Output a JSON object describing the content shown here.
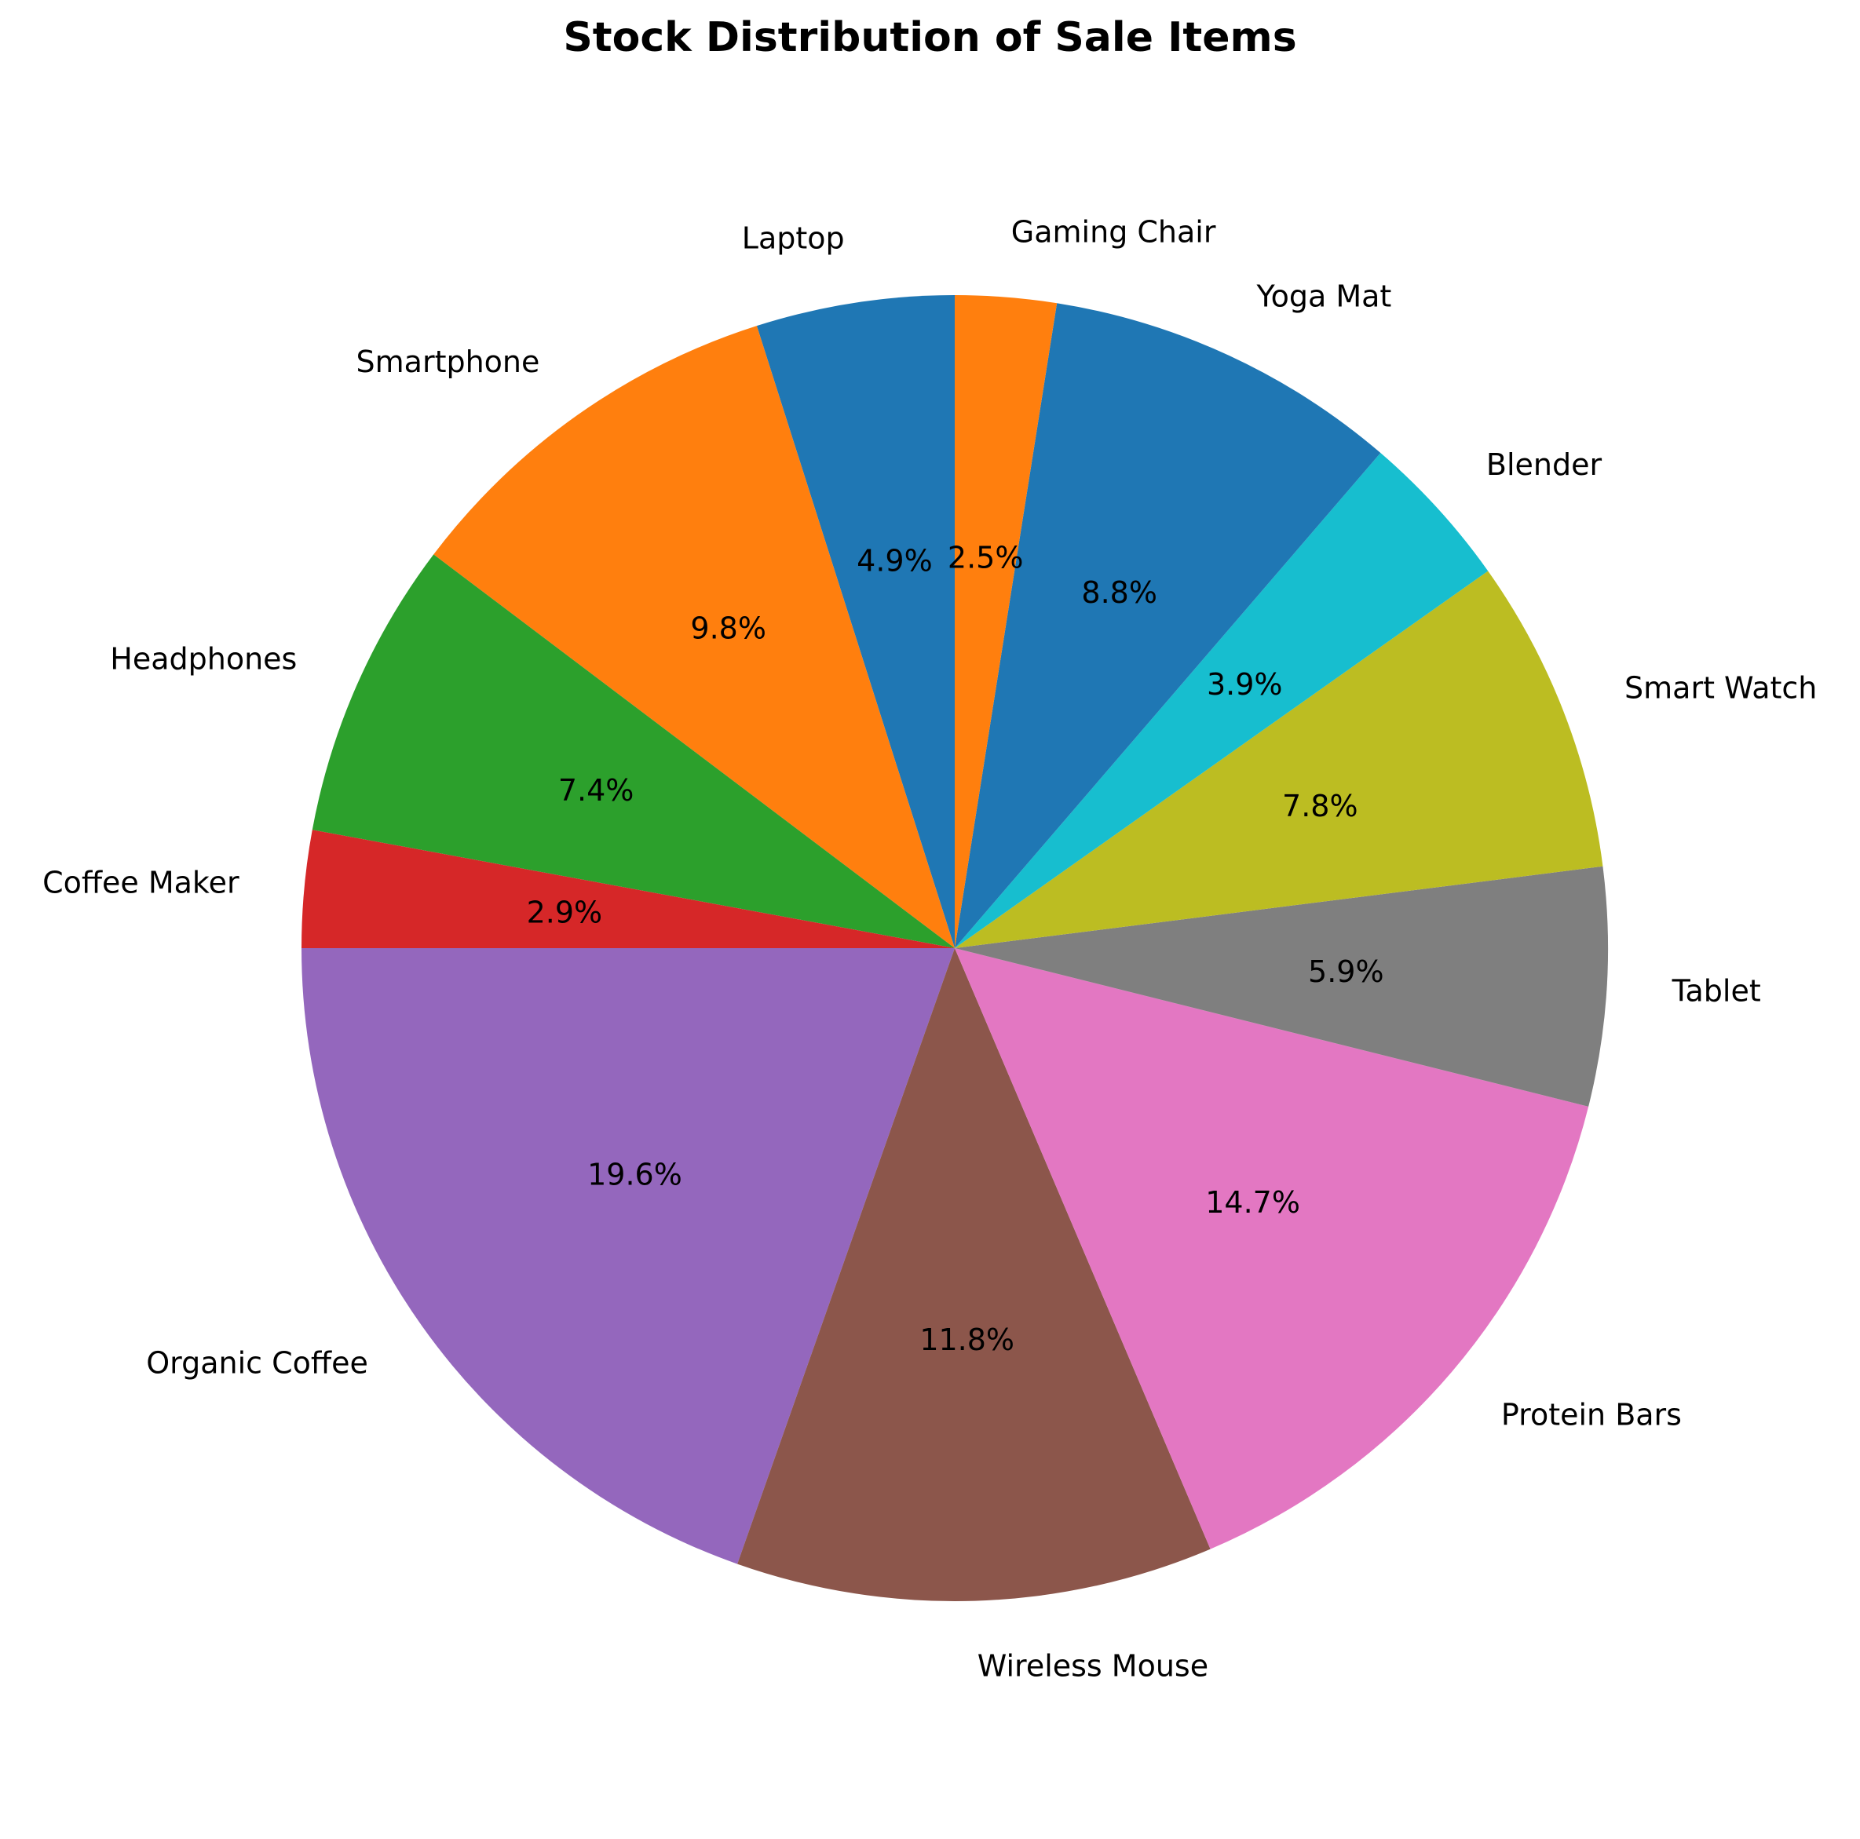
{
  "chart_data": {
    "type": "pie",
    "title": "Stock Distribution of Sale Items",
    "start_angle_deg": 90,
    "direction": "counterclockwise",
    "slices": [
      {
        "label": "Laptop",
        "percent": 4.9,
        "percent_label": "4.9%",
        "color": "#1f77b4"
      },
      {
        "label": "Smartphone",
        "percent": 9.8,
        "percent_label": "9.8%",
        "color": "#ff7f0e"
      },
      {
        "label": "Headphones",
        "percent": 7.4,
        "percent_label": "7.4%",
        "color": "#2ca02c"
      },
      {
        "label": "Coffee Maker",
        "percent": 2.9,
        "percent_label": "2.9%",
        "color": "#d62728"
      },
      {
        "label": "Organic Coffee",
        "percent": 19.6,
        "percent_label": "19.6%",
        "color": "#9467bd"
      },
      {
        "label": "Wireless Mouse",
        "percent": 11.8,
        "percent_label": "11.8%",
        "color": "#8c564b"
      },
      {
        "label": "Protein Bars",
        "percent": 14.7,
        "percent_label": "14.7%",
        "color": "#e377c2"
      },
      {
        "label": "Tablet",
        "percent": 5.9,
        "percent_label": "5.9%",
        "color": "#7f7f7f"
      },
      {
        "label": "Smart Watch",
        "percent": 7.8,
        "percent_label": "7.8%",
        "color": "#bcbd22"
      },
      {
        "label": "Blender",
        "percent": 3.9,
        "percent_label": "3.9%",
        "color": "#17becf"
      },
      {
        "label": "Yoga Mat",
        "percent": 8.8,
        "percent_label": "8.8%",
        "color": "#1f77b4"
      },
      {
        "label": "Gaming Chair",
        "percent": 2.5,
        "percent_label": "2.5%",
        "color": "#ff7f0e"
      }
    ]
  }
}
